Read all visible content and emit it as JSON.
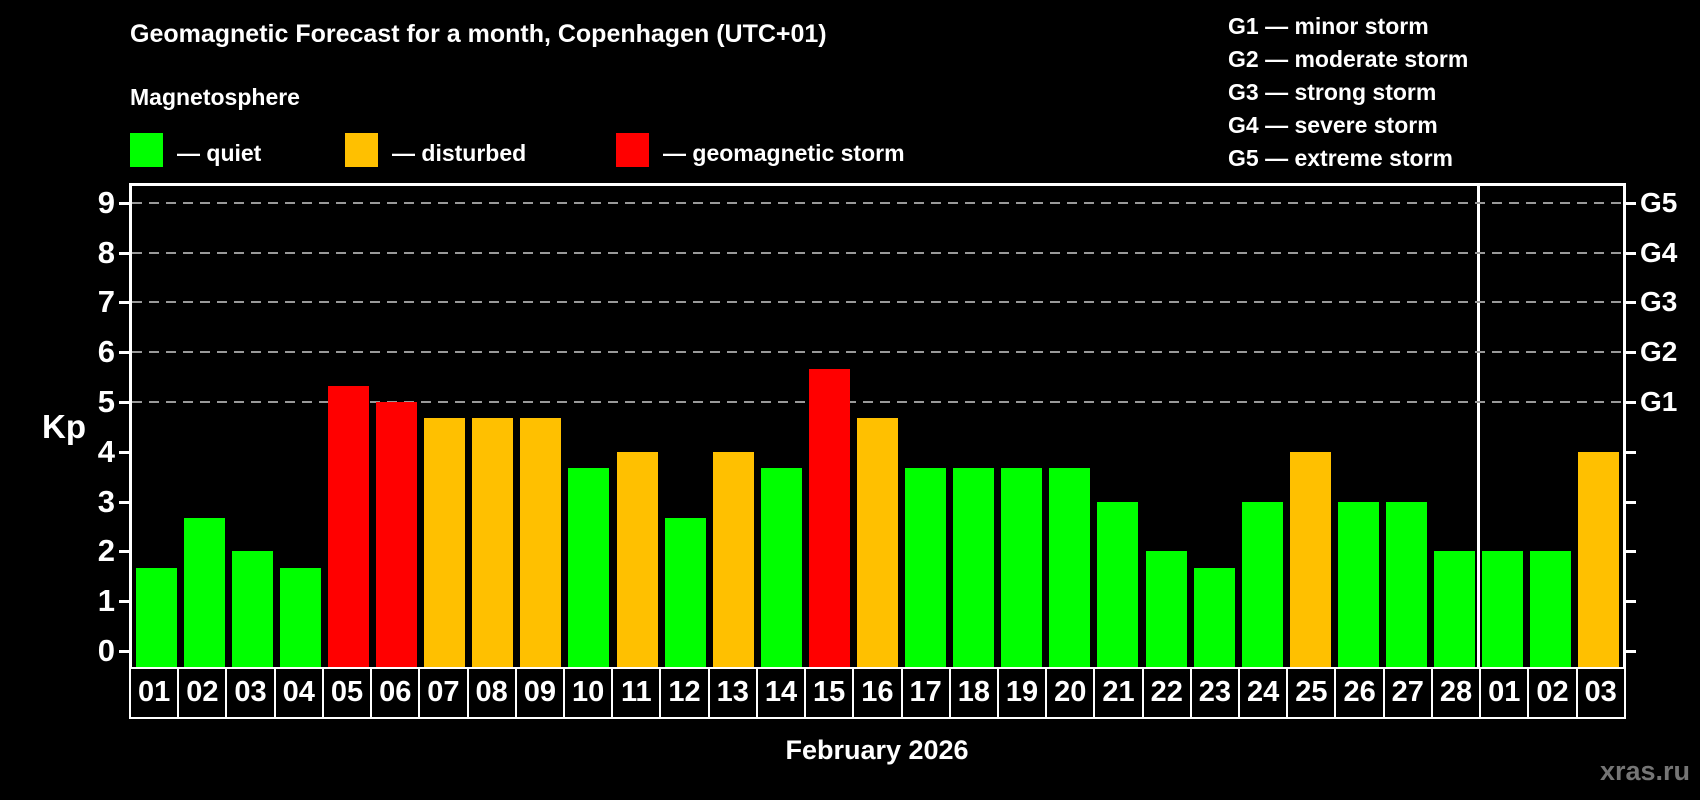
{
  "title": "Geomagnetic Forecast for a month, Copenhagen (UTC+01)",
  "legend": {
    "heading": "Magnetosphere",
    "items": [
      {
        "name": "quiet",
        "label": "— quiet",
        "color": "#00FF00"
      },
      {
        "name": "disturbed",
        "label": "— disturbed",
        "color": "#FFC000"
      },
      {
        "name": "storm",
        "label": "— geomagnetic storm",
        "color": "#FF0000"
      }
    ]
  },
  "g_scale_legend": [
    "G1 — minor storm",
    "G2 — moderate storm",
    "G3 — strong storm",
    "G4 — severe storm",
    "G5 — extreme storm"
  ],
  "y_axis": {
    "label": "Kp",
    "ticks": [
      0,
      1,
      2,
      3,
      4,
      5,
      6,
      7,
      8,
      9
    ]
  },
  "right_axis": {
    "labels": [
      {
        "text": "G1",
        "level": 5
      },
      {
        "text": "G2",
        "level": 6
      },
      {
        "text": "G3",
        "level": 7
      },
      {
        "text": "G4",
        "level": 8
      },
      {
        "text": "G5",
        "level": 9
      }
    ]
  },
  "x_axis": {
    "label": "February 2026"
  },
  "watermark": "xras.ru",
  "colors": {
    "quiet": "#00FF00",
    "disturbed": "#FFC000",
    "storm": "#FF0000",
    "grid": "#999999",
    "axis": "#FFFFFF",
    "watermark": "#757575"
  },
  "chart_data": {
    "type": "bar",
    "title": "Geomagnetic Forecast for a month, Copenhagen (UTC+01)",
    "xlabel": "February 2026",
    "ylabel": "Kp",
    "ylim": [
      0,
      9.4
    ],
    "grid": "dashed horizontal at Kp 5-9 only",
    "gridlines_at": [
      5,
      6,
      7,
      8,
      9
    ],
    "g_levels": {
      "G1": 5,
      "G2": 6,
      "G3": 7,
      "G4": 8,
      "G5": 9
    },
    "categories": [
      "01",
      "02",
      "03",
      "04",
      "05",
      "06",
      "07",
      "08",
      "09",
      "10",
      "11",
      "12",
      "13",
      "14",
      "15",
      "16",
      "17",
      "18",
      "19",
      "20",
      "21",
      "22",
      "23",
      "24",
      "25",
      "26",
      "27",
      "28",
      "01",
      "02",
      "03"
    ],
    "values": [
      1.67,
      2.67,
      2,
      1.67,
      5.33,
      5,
      4.67,
      4.67,
      4.67,
      3.67,
      4,
      2.67,
      4,
      3.67,
      5.67,
      4.67,
      3.67,
      3.67,
      3.67,
      3.67,
      3,
      2,
      1.67,
      3,
      4,
      3,
      3,
      2,
      2,
      2,
      4
    ],
    "statuses": [
      "quiet",
      "quiet",
      "quiet",
      "quiet",
      "storm",
      "storm",
      "disturbed",
      "disturbed",
      "disturbed",
      "quiet",
      "disturbed",
      "quiet",
      "disturbed",
      "quiet",
      "storm",
      "disturbed",
      "quiet",
      "quiet",
      "quiet",
      "quiet",
      "quiet",
      "quiet",
      "quiet",
      "quiet",
      "disturbed",
      "quiet",
      "quiet",
      "quiet",
      "quiet",
      "quiet",
      "disturbed"
    ],
    "month_separator_after_index": 27
  }
}
